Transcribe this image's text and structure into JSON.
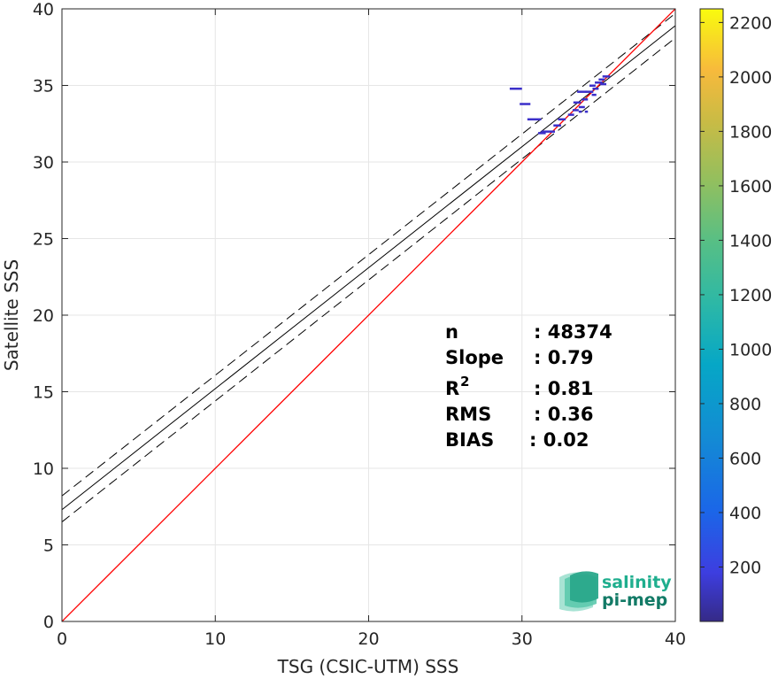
{
  "chart_data": {
    "type": "scatter",
    "xlabel": "TSG (CSIC-UTM) SSS",
    "ylabel": "Satellite SSS",
    "xlim": [
      0,
      40
    ],
    "ylim": [
      0,
      40
    ],
    "xticks": [
      0,
      10,
      20,
      30,
      40
    ],
    "yticks": [
      0,
      5,
      10,
      15,
      20,
      25,
      30,
      35,
      40
    ],
    "grid": true,
    "colorbar": {
      "ticks": [
        200,
        400,
        600,
        800,
        1000,
        1200,
        1400,
        1600,
        1800,
        2000,
        2200
      ],
      "range": [
        0,
        2250
      ],
      "colormap": "parula"
    },
    "one_to_one_line": {
      "color": "#ff0000",
      "x": [
        0,
        40
      ],
      "y": [
        0,
        40
      ]
    },
    "regression_line": {
      "x": [
        0,
        40
      ],
      "y": [
        7.3,
        38.9
      ],
      "color": "#000000"
    },
    "confidence_lines": [
      {
        "x": [
          0,
          40
        ],
        "y": [
          8.2,
          39.7
        ]
      },
      {
        "x": [
          0,
          40
        ],
        "y": [
          6.5,
          38.1
        ]
      }
    ],
    "points": [
      {
        "x": 29.6,
        "y": 34.8,
        "w": 0.8,
        "c": 1
      },
      {
        "x": 30.2,
        "y": 33.8,
        "w": 0.7,
        "c": 1
      },
      {
        "x": 30.8,
        "y": 32.8,
        "w": 0.9,
        "c": 1
      },
      {
        "x": 31.7,
        "y": 32.0,
        "w": 0.9,
        "c": 1
      },
      {
        "x": 31.3,
        "y": 31.9,
        "w": 0.5,
        "c": 1
      },
      {
        "x": 32.3,
        "y": 32.4,
        "w": 0.5,
        "c": 1
      },
      {
        "x": 32.6,
        "y": 32.8,
        "w": 0.5,
        "c": 1
      },
      {
        "x": 33.2,
        "y": 33.1,
        "w": 0.4,
        "c": 1
      },
      {
        "x": 33.5,
        "y": 33.4,
        "w": 0.4,
        "c": 1
      },
      {
        "x": 33.6,
        "y": 33.9,
        "w": 0.5,
        "c": 1
      },
      {
        "x": 33.9,
        "y": 33.6,
        "w": 0.4,
        "c": 1
      },
      {
        "x": 34.1,
        "y": 34.1,
        "w": 0.4,
        "c": 1
      },
      {
        "x": 33.9,
        "y": 34.6,
        "w": 0.6,
        "c": 1
      },
      {
        "x": 34.4,
        "y": 34.6,
        "w": 0.5,
        "c": 1
      },
      {
        "x": 34.6,
        "y": 35.0,
        "w": 0.4,
        "c": 1
      },
      {
        "x": 34.8,
        "y": 34.8,
        "w": 0.4,
        "c": 1
      },
      {
        "x": 35.0,
        "y": 35.2,
        "w": 0.5,
        "c": 1
      },
      {
        "x": 35.2,
        "y": 35.4,
        "w": 0.4,
        "c": 1
      },
      {
        "x": 35.5,
        "y": 35.6,
        "w": 0.5,
        "c": 1
      },
      {
        "x": 35.3,
        "y": 35.1,
        "w": 0.4,
        "c": 1
      },
      {
        "x": 33.8,
        "y": 33.3,
        "w": 0.2,
        "c": 1
      },
      {
        "x": 34.2,
        "y": 33.3,
        "w": 0.2,
        "c": 1
      },
      {
        "x": 34.7,
        "y": 34.4,
        "w": 0.3,
        "c": 1
      }
    ],
    "stats": [
      {
        "label": "n",
        "sup": "",
        "value": ": 48374"
      },
      {
        "label": "Slope",
        "sup": "",
        "value": ": 0.79"
      },
      {
        "label": "R",
        "sup": "2",
        "value": ": 0.81"
      },
      {
        "label": "RMS",
        "sup": "",
        "value": ": 0.36"
      },
      {
        "label": "BIAS",
        "sup": "",
        "value": ": 0.02"
      }
    ]
  },
  "logo": {
    "line1": "salinity",
    "line2": "pi-mep",
    "color1": "#1fae8e",
    "color2": "#127a66"
  }
}
